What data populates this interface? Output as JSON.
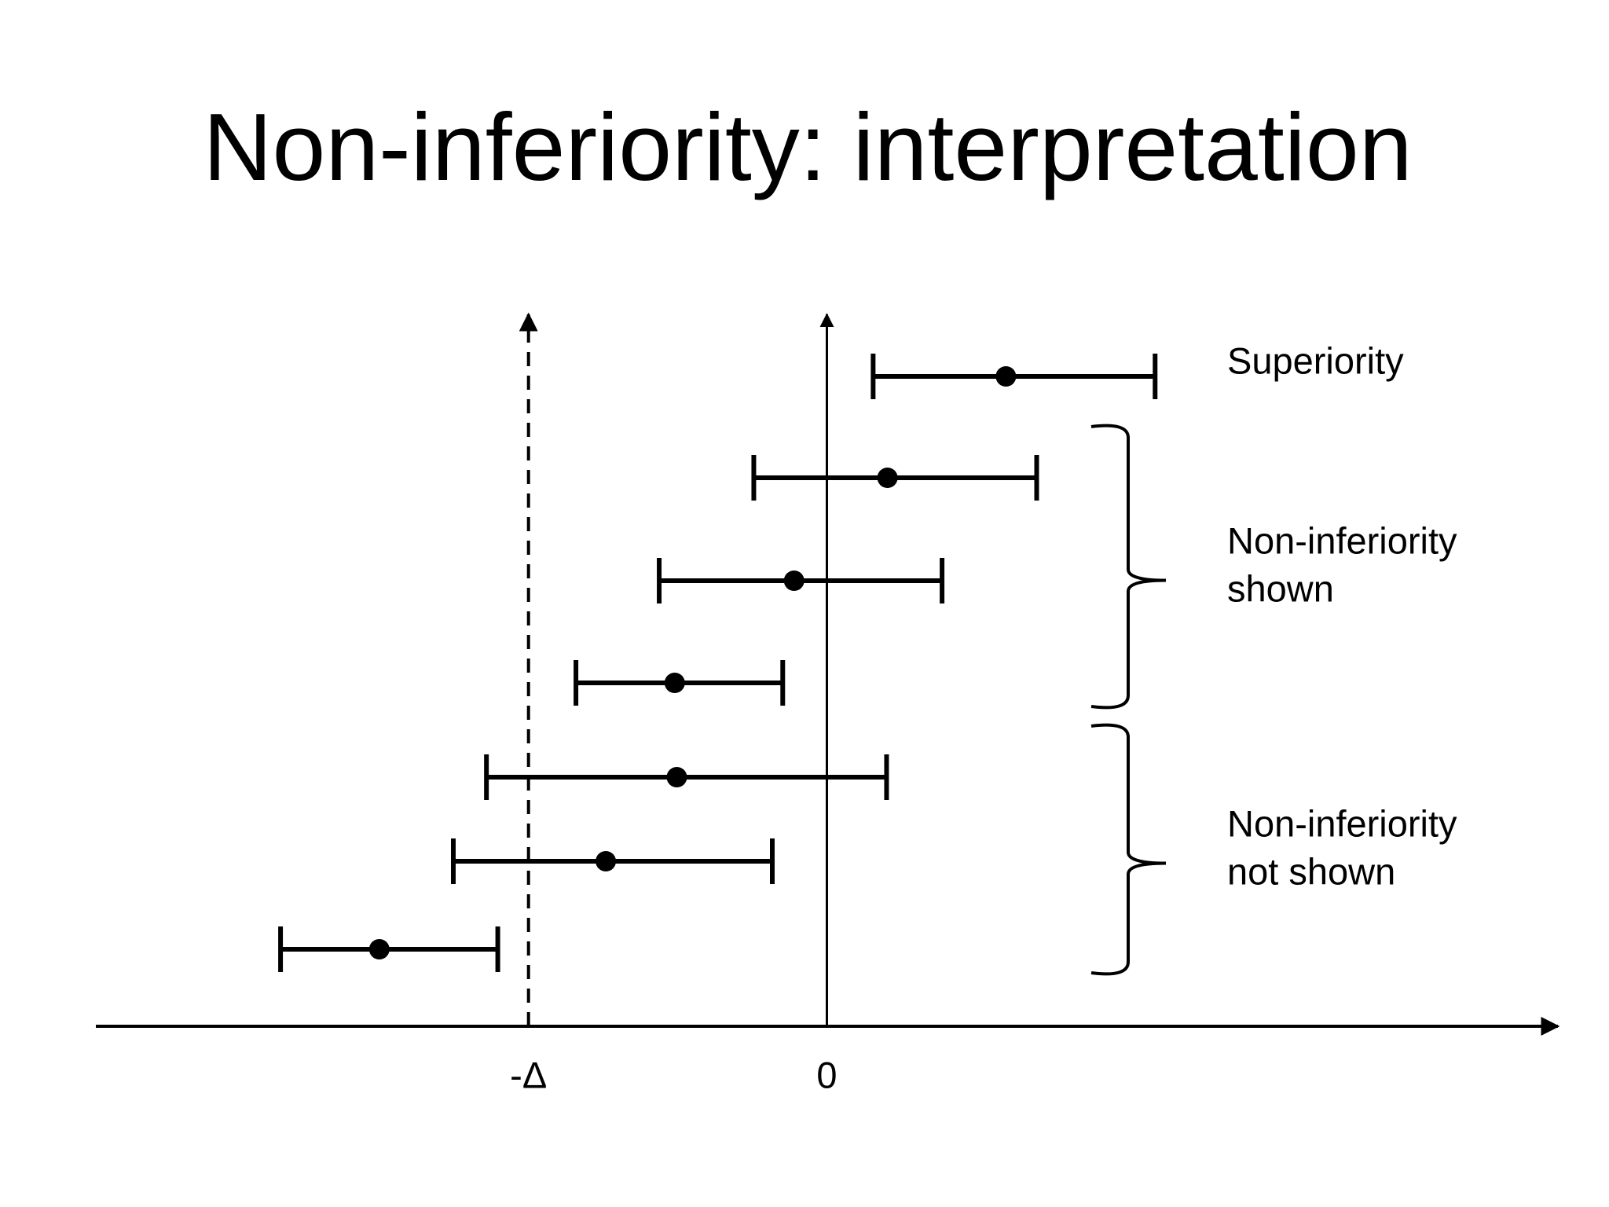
{
  "chart_data": {
    "type": "interval",
    "title": "Non-inferiority: interpretation",
    "xlim": [
      -2.45,
      2.45
    ],
    "xticks": [
      {
        "value": -1,
        "label": "-Δ"
      },
      0
    ],
    "estimates": [
      0.6,
      0.203,
      -0.11,
      -0.51,
      -0.503,
      -0.741,
      -1.5
    ],
    "lower": [
      0.155,
      -0.245,
      -0.562,
      -0.841,
      -1.141,
      -1.252,
      -1.831
    ],
    "upper": [
      1.1,
      0.703,
      0.386,
      -0.148,
      0.2,
      -0.183,
      -1.103
    ],
    "annotations": [
      {
        "lines": [
          "Superiority"
        ]
      },
      {
        "lines": [
          "Non-inferiority",
          "shown"
        ]
      },
      {
        "lines": [
          "Non-inferiority",
          "not shown"
        ]
      }
    ]
  }
}
